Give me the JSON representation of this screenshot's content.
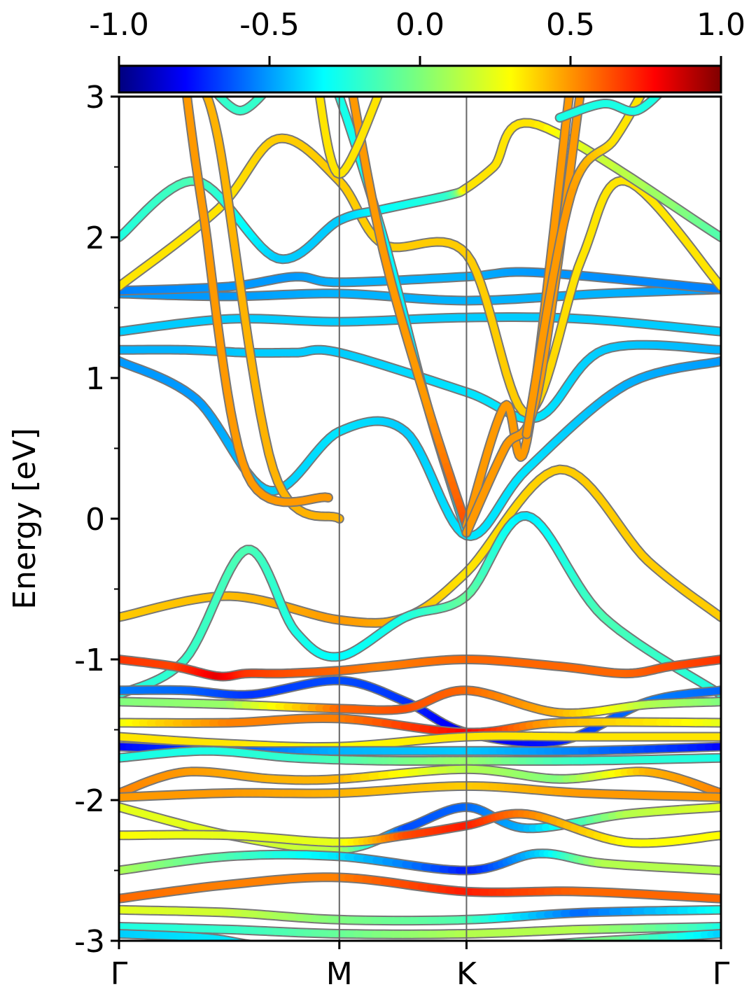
{
  "chart_data": {
    "type": "line",
    "ylabel": "Energy [eV]",
    "ylim": [
      -3,
      3
    ],
    "yticks": [
      "-3",
      "-2",
      "-1",
      "0",
      "1",
      "2",
      "3"
    ],
    "x_path": [
      "Γ",
      "M",
      "K",
      "Γ"
    ],
    "x_path_positions": [
      0,
      1,
      1.577,
      2.732
    ],
    "colorbar": {
      "range": [
        -1.0,
        1.0
      ],
      "tick_labels": [
        "-1.0",
        "-0.5",
        "0.0",
        "0.5",
        "1.0"
      ],
      "colormap": "jet"
    },
    "series": [
      {
        "k": [
          0,
          0.5,
          1,
          1.3,
          1.577,
          2.0,
          2.4,
          2.732
        ],
        "e": [
          -0.7,
          -0.55,
          -0.72,
          -0.7,
          -0.38,
          0.35,
          -0.3,
          -0.7
        ],
        "c": [
          0.35,
          0.38,
          0.45,
          0.4,
          0.3,
          0.35,
          0.35,
          0.35
        ]
      },
      {
        "k": [
          0,
          0.3,
          0.58,
          0.8,
          1,
          1.3,
          1.577,
          1.85,
          2.2,
          2.732
        ],
        "e": [
          -1.25,
          -1.0,
          -0.22,
          -0.8,
          -0.98,
          -0.7,
          -0.55,
          0.02,
          -0.7,
          -1.25
        ],
        "c": [
          -0.2,
          -0.15,
          -0.1,
          -0.2,
          -0.25,
          -0.2,
          -0.05,
          -0.3,
          -0.1,
          -0.2
        ]
      },
      {
        "k": [
          0,
          0.35,
          0.68,
          1,
          1.3,
          1.577,
          1.85,
          2.3,
          2.732
        ],
        "e": [
          1.12,
          0.85,
          0.2,
          0.62,
          0.62,
          -0.12,
          0.35,
          0.95,
          1.12
        ],
        "c": [
          -0.45,
          -0.45,
          -0.35,
          -0.3,
          -0.35,
          -0.3,
          -0.3,
          -0.4,
          -0.45
        ]
      },
      {
        "k": [
          0,
          0.3,
          0.58,
          0.8,
          1,
          1.577,
          1.9,
          2.2,
          2.732
        ],
        "e": [
          1.2,
          1.2,
          1.18,
          1.18,
          1.18,
          0.9,
          0.72,
          1.2,
          1.2
        ],
        "c": [
          -0.4,
          -0.4,
          -0.35,
          -0.35,
          -0.35,
          -0.3,
          -0.3,
          -0.35,
          -0.4
        ]
      },
      {
        "k": [
          0,
          0.5,
          1,
          1.577,
          2.1,
          2.732
        ],
        "e": [
          1.33,
          1.42,
          1.4,
          1.43,
          1.42,
          1.33
        ],
        "c": [
          -0.35,
          -0.35,
          -0.35,
          -0.35,
          -0.35,
          -0.35
        ]
      },
      {
        "k": [
          0,
          0.5,
          1,
          1.577,
          2.2,
          2.732
        ],
        "e": [
          1.6,
          1.58,
          1.6,
          1.55,
          1.6,
          1.63
        ],
        "c": [
          -0.45,
          -0.45,
          -0.4,
          -0.4,
          -0.4,
          -0.45
        ]
      },
      {
        "k": [
          0,
          0.5,
          0.8,
          1,
          1.577,
          1.9,
          2.732
        ],
        "e": [
          1.62,
          1.65,
          1.72,
          1.68,
          1.72,
          1.75,
          1.63
        ],
        "c": [
          -0.5,
          -0.45,
          -0.45,
          -0.4,
          -0.4,
          -0.45,
          -0.5
        ]
      },
      {
        "k": [
          0,
          0.45,
          0.72,
          1,
          1.2,
          1.577,
          1.85,
          2.1,
          2.3,
          2.732
        ],
        "e": [
          1.65,
          2.2,
          2.7,
          2.4,
          1.95,
          1.88,
          0.75,
          1.85,
          2.4,
          1.65
        ],
        "c": [
          0.3,
          0.3,
          0.35,
          0.35,
          0.35,
          0.35,
          0.35,
          0.3,
          0.3,
          0.3
        ]
      },
      {
        "k": [
          0,
          0.35,
          0.72,
          1,
          1.2,
          1.5,
          1.577,
          1.7,
          1.9,
          2.732
        ],
        "e": [
          2.0,
          2.4,
          1.85,
          2.12,
          2.2,
          2.3,
          2.35,
          2.5,
          2.8,
          2.0
        ],
        "c": [
          -0.2,
          -0.1,
          -0.35,
          -0.35,
          -0.25,
          -0.15,
          0.3,
          0.3,
          0.3,
          -0.1
        ]
      },
      {
        "k": [
          0,
          0.25,
          0.45,
          0.58,
          0.75,
          1,
          1.2,
          1.577,
          2.0,
          2.3,
          2.5,
          2.732
        ],
        "e": [
          -1.0,
          -1.05,
          -1.12,
          -1.1,
          -1.1,
          -1.08,
          -1.05,
          -1.0,
          -1.05,
          -1.1,
          -1.05,
          -1.0
        ],
        "c": [
          0.65,
          0.62,
          0.8,
          0.65,
          0.6,
          0.55,
          0.5,
          0.55,
          0.55,
          0.55,
          0.6,
          0.65
        ]
      },
      {
        "k": [
          0,
          0.3,
          0.6,
          1,
          1.3,
          1.577,
          2.0,
          2.4,
          2.732
        ],
        "e": [
          -1.22,
          -1.22,
          -1.25,
          -1.15,
          -1.3,
          -1.52,
          -1.58,
          -1.3,
          -1.22
        ],
        "c": [
          -0.5,
          -0.55,
          -0.65,
          -0.6,
          -0.65,
          -0.8,
          -0.7,
          -0.5,
          -0.55
        ]
      },
      {
        "k": [
          0,
          0.5,
          1,
          1.3,
          1.577,
          2.0,
          2.4,
          2.732
        ],
        "e": [
          -1.3,
          -1.32,
          -1.35,
          -1.35,
          -1.22,
          -1.38,
          -1.32,
          -1.3
        ],
        "c": [
          0.0,
          0.05,
          0.55,
          0.6,
          0.55,
          0.4,
          0.1,
          0.0
        ]
      },
      {
        "k": [
          0,
          0.5,
          1,
          1.577,
          2.0,
          2.732
        ],
        "e": [
          -1.45,
          -1.45,
          -1.42,
          -1.52,
          -1.45,
          -1.45
        ],
        "c": [
          0.2,
          0.5,
          0.5,
          0.75,
          0.4,
          0.2
        ]
      },
      {
        "k": [
          0,
          0.5,
          1,
          1.577,
          2.1,
          2.732
        ],
        "e": [
          -1.55,
          -1.6,
          -1.62,
          -1.55,
          -1.55,
          -1.55
        ],
        "c": [
          0.3,
          0.3,
          0.25,
          0.3,
          0.3,
          0.3
        ]
      },
      {
        "k": [
          0,
          0.5,
          1,
          1.577,
          2.1,
          2.732
        ],
        "e": [
          -1.62,
          -1.65,
          -1.65,
          -1.65,
          -1.65,
          -1.62
        ],
        "c": [
          -0.75,
          -0.6,
          -0.4,
          -0.35,
          -0.5,
          -0.75
        ]
      },
      {
        "k": [
          0,
          0.4,
          0.8,
          1.2,
          1.577,
          2.1,
          2.732
        ],
        "e": [
          -1.7,
          -1.65,
          -1.7,
          -1.72,
          -1.72,
          -1.72,
          -1.7
        ],
        "c": [
          -0.2,
          -0.2,
          -0.15,
          -0.05,
          0.05,
          -0.15,
          -0.2
        ]
      },
      {
        "k": [
          0,
          0.3,
          0.7,
          1,
          1.577,
          2.0,
          2.4,
          2.732
        ],
        "e": [
          -1.95,
          -1.8,
          -1.85,
          -1.85,
          -1.78,
          -1.85,
          -1.8,
          -1.95
        ],
        "c": [
          0.5,
          0.45,
          0.4,
          0.4,
          0.1,
          0.0,
          0.4,
          0.5
        ]
      },
      {
        "k": [
          0,
          0.5,
          1,
          1.577,
          2.1,
          2.732
        ],
        "e": [
          -1.98,
          -1.95,
          -1.95,
          -1.9,
          -1.95,
          -1.98
        ],
        "c": [
          0.45,
          0.45,
          0.4,
          0.35,
          0.45,
          0.45
        ]
      },
      {
        "k": [
          0,
          0.5,
          1,
          1.3,
          1.577,
          1.85,
          2.3,
          2.732
        ],
        "e": [
          -2.05,
          -2.25,
          -2.35,
          -2.2,
          -2.05,
          -2.2,
          -2.1,
          -2.05
        ],
        "c": [
          0.2,
          0.2,
          0.1,
          -0.6,
          -0.55,
          -0.4,
          0.1,
          0.2
        ]
      },
      {
        "k": [
          0,
          0.5,
          1,
          1.3,
          1.577,
          1.85,
          2.3,
          2.732
        ],
        "e": [
          -2.25,
          -2.25,
          -2.3,
          -2.25,
          -2.18,
          -2.1,
          -2.3,
          -2.25
        ],
        "c": [
          0.25,
          0.2,
          0.2,
          0.6,
          0.7,
          0.5,
          0.25,
          0.25
        ]
      },
      {
        "k": [
          0,
          0.5,
          1,
          1.577,
          1.9,
          2.2,
          2.732
        ],
        "e": [
          -2.5,
          -2.4,
          -2.4,
          -2.5,
          -2.38,
          -2.45,
          -2.5
        ],
        "c": [
          0.1,
          -0.1,
          -0.3,
          -0.7,
          -0.35,
          0.1,
          0.1
        ]
      },
      {
        "k": [
          0,
          0.5,
          1,
          1.577,
          2.1,
          2.732
        ],
        "e": [
          -2.7,
          -2.6,
          -2.55,
          -2.65,
          -2.65,
          -2.7
        ],
        "c": [
          0.55,
          0.5,
          0.5,
          0.7,
          0.55,
          0.55
        ]
      },
      {
        "k": [
          0,
          0.5,
          1,
          1.577,
          2.1,
          2.732
        ],
        "e": [
          -2.78,
          -2.8,
          -2.85,
          -2.85,
          -2.8,
          -2.78
        ],
        "c": [
          0.2,
          0.15,
          0.0,
          -0.1,
          -0.55,
          -0.2
        ]
      },
      {
        "k": [
          0,
          0.5,
          1,
          1.577,
          2.1,
          2.732
        ],
        "e": [
          -2.9,
          -2.92,
          -2.95,
          -2.95,
          -2.92,
          -2.9
        ],
        "c": [
          -0.2,
          -0.15,
          -0.05,
          0.1,
          0.1,
          -0.2
        ]
      },
      {
        "k": [
          0,
          0.4,
          0.76,
          1.577,
          2.2,
          2.732
        ],
        "e": [
          -2.95,
          -2.98,
          -3.05,
          -3.05,
          -3.0,
          -2.95
        ],
        "c": [
          -0.35,
          -0.3,
          -0.3,
          -0.3,
          0.0,
          -0.35
        ]
      },
      {
        "k": [
          0.35,
          0.45,
          0.7,
          1.0
        ],
        "e": [
          3.1,
          2.7,
          0.35,
          0.0
        ],
        "c": [
          0.4,
          0.4,
          0.4,
          0.4
        ]
      },
      {
        "k": [
          0.3,
          0.38,
          0.58,
          0.95
        ],
        "e": [
          3.1,
          2.2,
          0.32,
          0.15
        ],
        "c": [
          0.45,
          0.45,
          0.45,
          0.45
        ]
      },
      {
        "k": [
          0.95,
          1.0,
          1.2,
          1.4,
          1.577
        ],
        "e": [
          3.1,
          3.0,
          2.0,
          0.8,
          -0.1
        ],
        "c": [
          -0.2,
          -0.2,
          -0.25,
          -0.3,
          -0.3
        ]
      },
      {
        "k": [
          1.05,
          1.2,
          1.4,
          1.577
        ],
        "e": [
          3.1,
          1.9,
          0.8,
          -0.05
        ],
        "c": [
          0.45,
          0.45,
          0.45,
          0.6
        ]
      },
      {
        "k": [
          1.577,
          1.75,
          1.85,
          2.05
        ],
        "e": [
          -0.05,
          0.8,
          0.55,
          3.1
        ],
        "c": [
          0.45,
          0.45,
          0.45,
          0.45
        ]
      },
      {
        "k": [
          1.577,
          1.75,
          1.9,
          2.1
        ],
        "e": [
          -0.1,
          0.5,
          0.9,
          3.1
        ],
        "c": [
          0.45,
          0.45,
          0.45,
          0.45
        ]
      },
      {
        "k": [
          1.85,
          2.05,
          2.25,
          2.4
        ],
        "e": [
          0.6,
          2.3,
          2.7,
          3.1
        ],
        "c": [
          0.45,
          0.45,
          0.3,
          0.3
        ]
      },
      {
        "k": [
          2.0,
          2.2,
          2.35,
          2.5
        ],
        "e": [
          2.85,
          2.95,
          2.9,
          3.1
        ],
        "c": [
          -0.2,
          -0.2,
          -0.2,
          -0.2
        ]
      },
      {
        "k": [
          0.4,
          0.55,
          0.7
        ],
        "e": [
          3.1,
          2.9,
          3.1
        ],
        "c": [
          -0.15,
          -0.15,
          -0.15
        ]
      },
      {
        "k": [
          0.9,
          1.0,
          1.2
        ],
        "e": [
          3.1,
          2.45,
          3.1
        ],
        "c": [
          0.3,
          0.3,
          0.3
        ]
      }
    ]
  }
}
